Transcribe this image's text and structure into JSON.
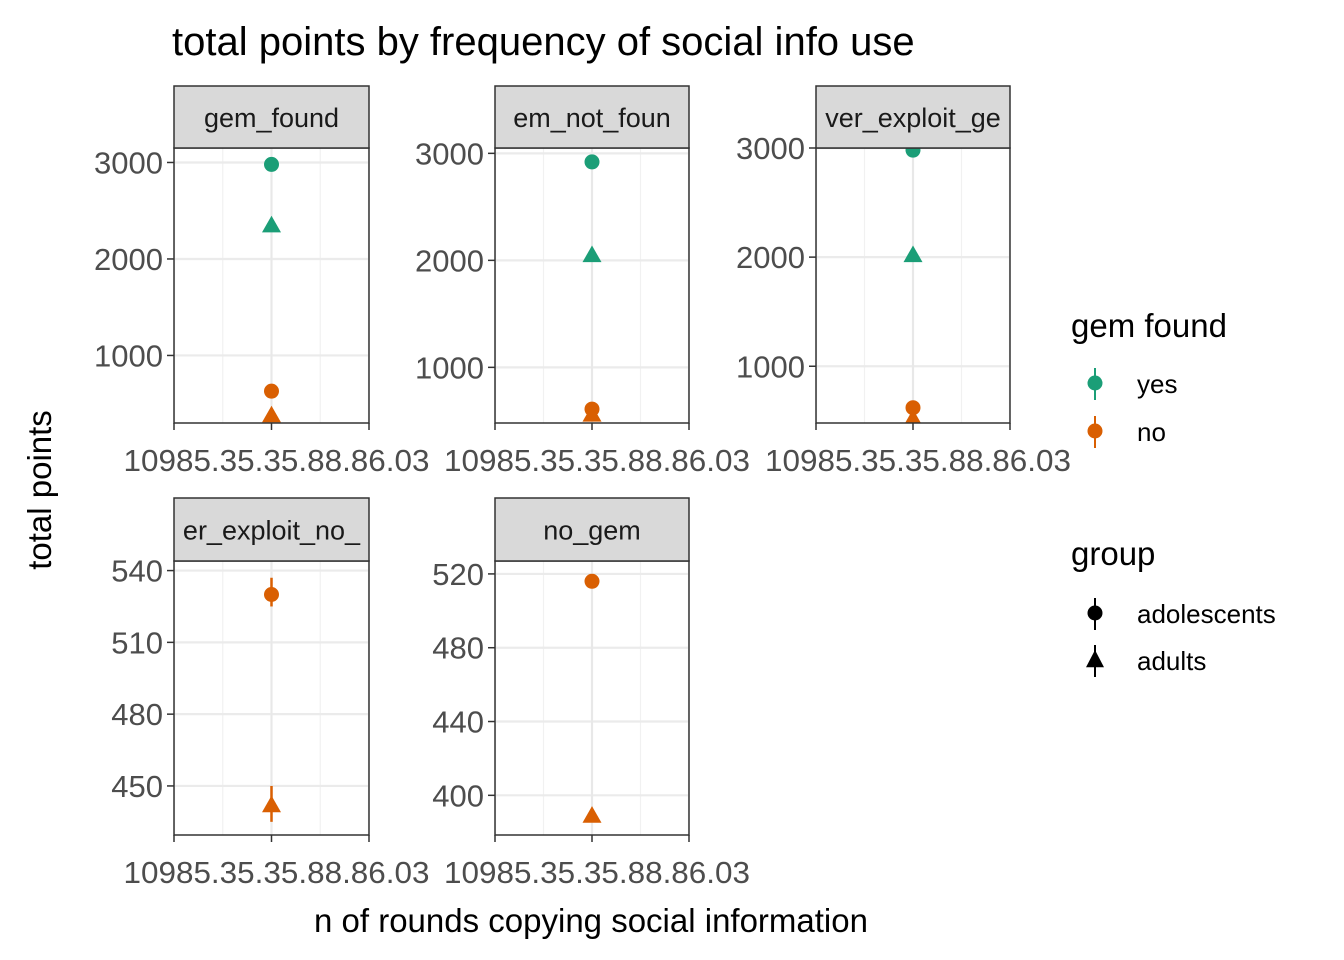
{
  "chart_data": {
    "type": "scatter",
    "title": "total points by frequency of social info use",
    "xlabel": "n of rounds copying social information",
    "ylabel": "total points",
    "x_tick_labels": [
      "10985",
      "13.5",
      "3.5",
      "10.88",
      "86.03"
    ],
    "x_tick_text_overlapped": "10985.35.35.88.86.03",
    "colors": {
      "yes": "#1b9e77",
      "no": "#d95f02"
    },
    "legend": [
      {
        "title": "gem found",
        "entries": [
          {
            "label": "yes",
            "color": "#1b9e77",
            "shape": "circle"
          },
          {
            "label": "no",
            "color": "#d95f02",
            "shape": "circle"
          }
        ]
      },
      {
        "title": "group",
        "entries": [
          {
            "label": "adolescents",
            "color": "#000000",
            "shape": "circle"
          },
          {
            "label": "adults",
            "color": "#000000",
            "shape": "triangle"
          }
        ]
      }
    ],
    "panels": [
      {
        "strip": "gem_found",
        "ylim": [
          300,
          3150
        ],
        "yticks": [
          1000,
          2000,
          3000
        ],
        "yticks_labels": [
          "1000",
          "2000",
          "3000"
        ],
        "points": [
          {
            "gem": "yes",
            "group": "adolescents",
            "y": 2980
          },
          {
            "gem": "yes",
            "group": "adults",
            "y": 2350
          },
          {
            "gem": "no",
            "group": "adolescents",
            "y": 630
          },
          {
            "gem": "no",
            "group": "adults",
            "y": 380
          }
        ]
      },
      {
        "strip": "em_not_foun",
        "ylim": [
          480,
          3050
        ],
        "yticks": [
          1000,
          2000,
          3000
        ],
        "yticks_labels": [
          "1000",
          "2000",
          "3000"
        ],
        "points": [
          {
            "gem": "yes",
            "group": "adolescents",
            "y": 2920
          },
          {
            "gem": "yes",
            "group": "adults",
            "y": 2050
          },
          {
            "gem": "no",
            "group": "adolescents",
            "y": 610
          },
          {
            "gem": "no",
            "group": "adults",
            "y": 560
          }
        ]
      },
      {
        "strip": "ver_exploit_ge",
        "ylim": [
          480,
          3000
        ],
        "yticks": [
          1000,
          2000,
          3000
        ],
        "yticks_labels": [
          "1000",
          "2000",
          "3000"
        ],
        "points": [
          {
            "gem": "yes",
            "group": "adolescents",
            "y": 2980
          },
          {
            "gem": "yes",
            "group": "adults",
            "y": 2020
          },
          {
            "gem": "no",
            "group": "adolescents",
            "y": 620
          },
          {
            "gem": "no",
            "group": "adults",
            "y": 520
          }
        ]
      },
      {
        "strip": "er_exploit_no_",
        "ylim": [
          429.5,
          544
        ],
        "yticks": [
          450,
          480,
          510,
          540
        ],
        "yticks_labels": [
          "450",
          "480",
          "510",
          "540"
        ],
        "points": [
          {
            "gem": "no",
            "group": "adolescents",
            "y": 530,
            "err": [
              525,
              537
            ]
          },
          {
            "gem": "no",
            "group": "adults",
            "y": 442,
            "err": [
              435,
              450
            ]
          }
        ]
      },
      {
        "strip": "no_gem",
        "ylim": [
          378.5,
          527
        ],
        "yticks": [
          400,
          440,
          480,
          520
        ],
        "yticks_labels": [
          "400",
          "440",
          "480",
          "520"
        ],
        "points": [
          {
            "gem": "no",
            "group": "adolescents",
            "y": 516
          },
          {
            "gem": "no",
            "group": "adults",
            "y": 389
          }
        ]
      }
    ]
  }
}
